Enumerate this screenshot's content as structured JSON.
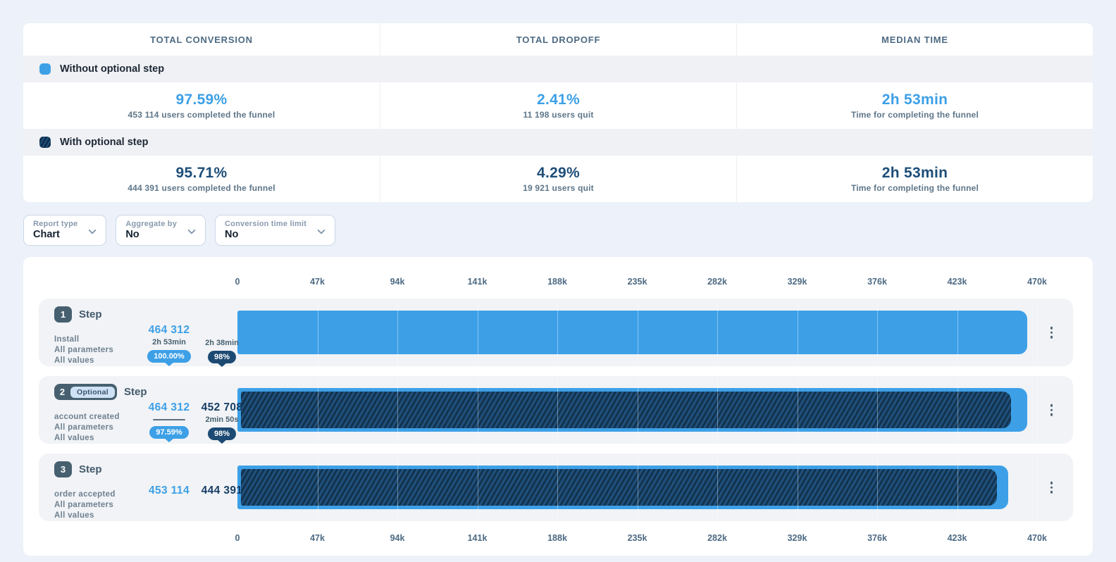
{
  "summary_table": {
    "columns": [
      "TOTAL CONVERSION",
      "TOTAL DROPOFF",
      "MEDIAN TIME"
    ],
    "groups": [
      {
        "label": "Without optional step",
        "swatch": "solid",
        "conversion": {
          "value": "97.59%",
          "caption": "453 114 users completed the funnel"
        },
        "dropoff": {
          "value": "2.41%",
          "caption": "11 198 users quit"
        },
        "median_time": {
          "value": "2h 53min",
          "caption": "Time for completing the funnel"
        }
      },
      {
        "label": "With optional step",
        "swatch": "striped",
        "conversion": {
          "value": "95.71%",
          "caption": "444 391 users completed the funnel"
        },
        "dropoff": {
          "value": "4.29%",
          "caption": "19 921 users quit"
        },
        "median_time": {
          "value": "2h 53min",
          "caption": "Time for completing the funnel"
        }
      }
    ]
  },
  "filters": [
    {
      "label": "Report type",
      "value": "Chart"
    },
    {
      "label": "Aggregate by",
      "value": "No"
    },
    {
      "label": "Conversion time limit",
      "value": "No"
    }
  ],
  "chart_data": {
    "type": "bar",
    "orientation": "horizontal",
    "x_axis": {
      "ticks": [
        "0",
        "47k",
        "94k",
        "141k",
        "188k",
        "235k",
        "282k",
        "329k",
        "376k",
        "423k",
        "470k"
      ],
      "max": 470000
    },
    "legend": [
      {
        "name": "Without optional step",
        "color": "#3da0e7",
        "style": "solid"
      },
      {
        "name": "With optional step",
        "color": "#1d4c77",
        "style": "striped"
      }
    ],
    "series": [
      {
        "name": "Without optional step",
        "values": [
          464312,
          464312,
          453114
        ]
      },
      {
        "name": "With optional step",
        "values": [
          null,
          452708,
          444391
        ]
      }
    ],
    "steps": [
      {
        "number": "1",
        "optional_label": null,
        "title": "Step",
        "event": "Install",
        "filter_lines": [
          "All parameters",
          "All values"
        ],
        "light": {
          "count": "464 312",
          "time": "2h 53min",
          "rule": false,
          "badge": "100.00%",
          "value": 464312
        },
        "dark": {
          "count": null,
          "time": "2h 38min",
          "rule": false,
          "badge": "98%",
          "value": null
        }
      },
      {
        "number": "2",
        "optional_label": "Optional",
        "title": "Step",
        "event": "account created",
        "filter_lines": [
          "All parameters",
          "All values"
        ],
        "light": {
          "count": "464 312",
          "time": null,
          "rule": true,
          "badge": "97.59%",
          "value": 464312
        },
        "dark": {
          "count": "452 708",
          "time": "2min 50s",
          "rule": false,
          "badge": "98%",
          "value": 452708
        }
      },
      {
        "number": "3",
        "optional_label": null,
        "title": "Step",
        "event": "order accepted",
        "filter_lines": [
          "All parameters",
          "All values"
        ],
        "light": {
          "count": "453 114",
          "time": null,
          "rule": false,
          "badge": null,
          "value": 453114
        },
        "dark": {
          "count": "444 391",
          "time": null,
          "rule": false,
          "badge": null,
          "value": 444391
        }
      }
    ],
    "colors": {
      "light": "#3da0e7",
      "dark": "#1d4c77"
    }
  }
}
